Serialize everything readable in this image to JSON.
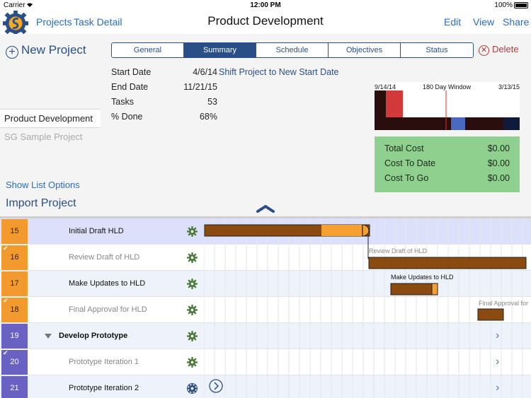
{
  "status_bar": {
    "carrier": "Carrier",
    "time": "12:00 PM",
    "battery": "100%"
  },
  "nav": {
    "projects": "Projects",
    "task_detail": "Task Detail",
    "title": "Product Development",
    "edit": "Edit",
    "view": "View",
    "share": "Share"
  },
  "sidebar": {
    "new_project": "New Project",
    "projects": [
      {
        "name": "Product Development",
        "active": true
      },
      {
        "name": "SG Sample Project",
        "active": false
      }
    ],
    "show_list_options": "Show List Options",
    "import_project": "Import Project"
  },
  "tabs": [
    "General",
    "Summary",
    "Schedule",
    "Objectives",
    "Status"
  ],
  "active_tab": "Summary",
  "delete_label": "Delete",
  "summary": {
    "start_date_label": "Start Date",
    "start_date": "4/6/14",
    "end_date_label": "End Date",
    "end_date": "11/21/15",
    "tasks_label": "Tasks",
    "tasks": "53",
    "done_label": "% Done",
    "done": "68%",
    "shift_link": "Shift Project to New Start Date"
  },
  "window": {
    "start": "9/14/14",
    "title": "180 Day Window",
    "end": "3/13/15"
  },
  "costs": [
    {
      "label": "Total Cost",
      "value": "$0.00"
    },
    {
      "label": "Cost To Date",
      "value": "$0.00"
    },
    {
      "label": "Cost To Go",
      "value": "$0.00"
    }
  ],
  "colors": {
    "brand": "#2a4f86",
    "link": "#2a6dbf",
    "orange": "#f29a2e",
    "purple": "#6a62c2",
    "bar_brown": "#8b4a10",
    "bar_orange": "#f5a030",
    "cost_green": "#8fd08f"
  },
  "gantt": {
    "rows": [
      {
        "num": "15",
        "name": "Initial Draft HLD",
        "done": false,
        "color": "orange",
        "bold": false,
        "indent": 2,
        "highlight": true
      },
      {
        "num": "16",
        "name": "Review Draft of HLD",
        "done": true,
        "color": "orange",
        "bold": false,
        "indent": 2,
        "highlight": false
      },
      {
        "num": "17",
        "name": "Make Updates to HLD",
        "done": false,
        "color": "orange",
        "bold": false,
        "indent": 2,
        "highlight": false
      },
      {
        "num": "18",
        "name": "Final Approval for HLD",
        "done": true,
        "color": "orange",
        "bold": false,
        "indent": 2,
        "highlight": false
      },
      {
        "num": "19",
        "name": "Develop Prototype",
        "done": false,
        "color": "purple",
        "bold": true,
        "indent": 1,
        "highlight": false
      },
      {
        "num": "20",
        "name": "Prototype Iteration 1",
        "done": true,
        "color": "purple",
        "bold": false,
        "indent": 2,
        "highlight": false
      },
      {
        "num": "21",
        "name": "Prototype Iteration 2",
        "done": false,
        "color": "purple",
        "bold": false,
        "indent": 2,
        "highlight": false
      }
    ],
    "bar_labels": {
      "review": "Review Draft of HLD",
      "updates": "Make Updates to HLD",
      "approval": "Final Approval for"
    }
  }
}
